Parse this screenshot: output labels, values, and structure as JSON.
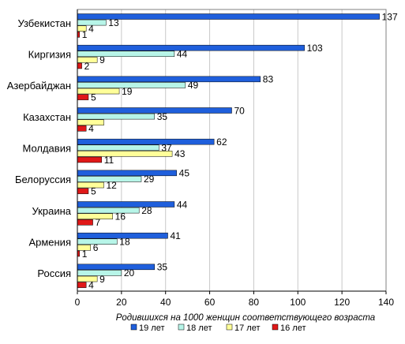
{
  "chart_data": {
    "type": "bar",
    "orientation": "horizontal",
    "categories": [
      "Узбекистан",
      "Киргизия",
      "Азербайджан",
      "Казахстан",
      "Молдавия",
      "Белоруссия",
      "Украина",
      "Армения",
      "Россия"
    ],
    "series": [
      {
        "name": "19 лет",
        "color": "#1f5fdc",
        "values": [
          137,
          103,
          83,
          70,
          62,
          45,
          44,
          41,
          35
        ]
      },
      {
        "name": "18 лет",
        "color": "#b7f5e8",
        "values": [
          13,
          44,
          49,
          35,
          37,
          29,
          28,
          18,
          20
        ]
      },
      {
        "name": "17 лет",
        "color": "#ffff99",
        "values": [
          4,
          9,
          19,
          12,
          43,
          12,
          16,
          6,
          9
        ]
      },
      {
        "name": "16 лет",
        "color": "#e01818",
        "values": [
          1,
          2,
          5,
          4,
          11,
          5,
          7,
          1,
          4
        ]
      }
    ],
    "value_labels": [
      [
        "137",
        "13",
        "4",
        "1"
      ],
      [
        "103",
        "44",
        "9",
        "2"
      ],
      [
        "83",
        "49",
        "19",
        "5"
      ],
      [
        "70",
        "35",
        "",
        "4"
      ],
      [
        "62",
        "37",
        "43",
        "11"
      ],
      [
        "45",
        "29",
        "12",
        "5"
      ],
      [
        "44",
        "28",
        "16",
        "7"
      ],
      [
        "41",
        "18",
        "6",
        "1"
      ],
      [
        "35",
        "20",
        "9",
        "4"
      ]
    ],
    "xlabel": "Родившихся на 1000 женщин соответствующего возраста",
    "ylabel": "",
    "xlim": [
      0,
      140
    ],
    "xticks": [
      0,
      20,
      40,
      60,
      80,
      100,
      120,
      140
    ],
    "grid": true,
    "legend_position": "bottom"
  }
}
